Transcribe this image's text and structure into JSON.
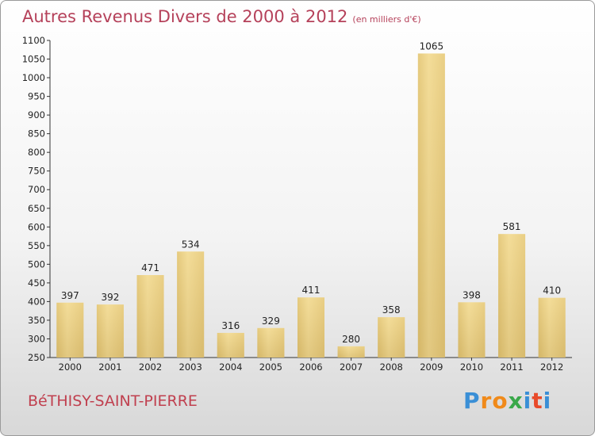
{
  "chart_data": {
    "type": "bar",
    "title": "Autres Revenus Divers de 2000 à 2012",
    "subtitle": "(en milliers d'€)",
    "categories": [
      "2000",
      "2001",
      "2002",
      "2003",
      "2004",
      "2005",
      "2006",
      "2007",
      "2008",
      "2009",
      "2010",
      "2011",
      "2012"
    ],
    "values": [
      397,
      392,
      471,
      534,
      316,
      329,
      411,
      280,
      358,
      1065,
      398,
      581,
      410
    ],
    "ylim": [
      250,
      1100
    ],
    "yticks": [
      250,
      300,
      350,
      400,
      450,
      500,
      550,
      600,
      650,
      700,
      750,
      800,
      850,
      900,
      950,
      1000,
      1050,
      1100
    ],
    "grid": false,
    "bar_color": "#e8c97a"
  },
  "footer": {
    "city": "BéTHISY-SAINT-PIERRE",
    "logo_letters": [
      "P",
      "r",
      "o",
      "x",
      "i",
      "t",
      "i"
    ],
    "logo_colors": [
      "#3a8fd6",
      "#f08a1a",
      "#f08a1a",
      "#3aa84a",
      "#3a8fd6",
      "#e84a2a",
      "#3a8fd6"
    ]
  }
}
